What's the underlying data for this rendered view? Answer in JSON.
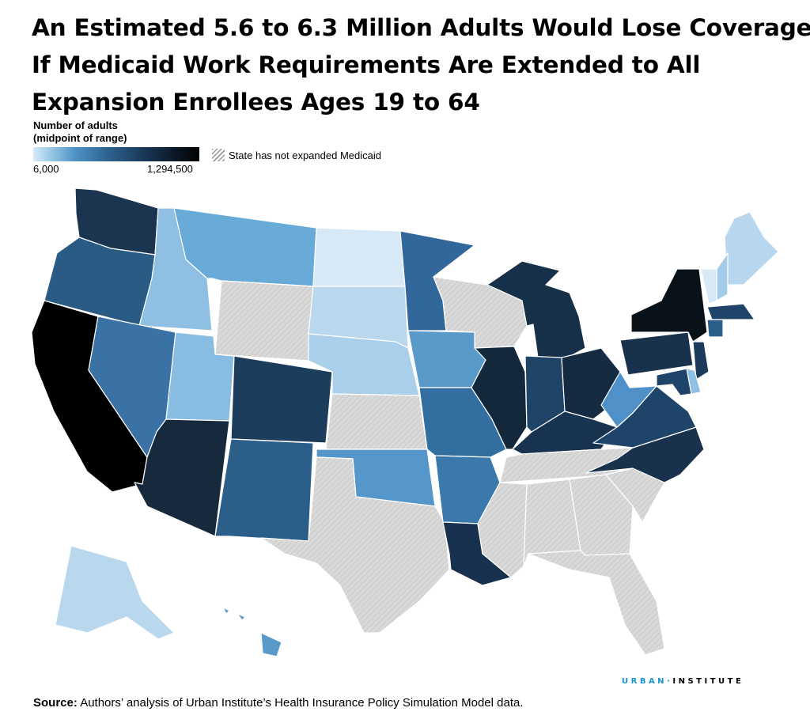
{
  "title_lines": [
    "An Estimated 5.6 to 6.3 Million Adults Would Lose Coverage",
    "If Medicaid Work Requirements Are Extended to All",
    "Expansion Enrollees Ages 19 to 64"
  ],
  "legend": {
    "title_line1": "Number of adults",
    "title_line2": "(midpoint of range)",
    "min_label": "6,000",
    "max_label": "1,294,500",
    "not_expanded_label": "State has not expanded Medicaid"
  },
  "colors": {
    "scale": [
      "#d7e9f7",
      "#9ccae7",
      "#4e93c6",
      "#2d628f",
      "#16324f",
      "#000000"
    ],
    "not_expanded": "#d9d9d9"
  },
  "states": [
    {
      "id": "WA",
      "color": "#1b3550"
    },
    {
      "id": "OR",
      "color": "#2a5b85"
    },
    {
      "id": "CA",
      "color": "#000000"
    },
    {
      "id": "ID",
      "color": "#8fc0e3"
    },
    {
      "id": "NV",
      "color": "#3a72a6"
    },
    {
      "id": "MT",
      "color": "#68abd9"
    },
    {
      "id": "WY",
      "color": "hatch"
    },
    {
      "id": "UT",
      "color": "#88bce1"
    },
    {
      "id": "AZ",
      "color": "#16293d"
    },
    {
      "id": "CO",
      "color": "#1d3d5c"
    },
    {
      "id": "NM",
      "color": "#2c5e8a"
    },
    {
      "id": "ND",
      "color": "#d7e9f7"
    },
    {
      "id": "SD",
      "color": "#b9d8ee"
    },
    {
      "id": "NE",
      "color": "#a9cfeb"
    },
    {
      "id": "KS",
      "color": "hatch"
    },
    {
      "id": "OK",
      "color": "#5597ca"
    },
    {
      "id": "TX",
      "color": "hatch"
    },
    {
      "id": "MN",
      "color": "#31679a"
    },
    {
      "id": "IA",
      "color": "#5a9acb"
    },
    {
      "id": "MO",
      "color": "#336ea0"
    },
    {
      "id": "AR",
      "color": "#3b78ab"
    },
    {
      "id": "LA",
      "color": "#17314f"
    },
    {
      "id": "WI",
      "color": "hatch"
    },
    {
      "id": "IL",
      "color": "#14283b"
    },
    {
      "id": "MI",
      "color": "#17304a"
    },
    {
      "id": "IN",
      "color": "#1f4468"
    },
    {
      "id": "OH",
      "color": "#152b42"
    },
    {
      "id": "KY",
      "color": "#18334f"
    },
    {
      "id": "TN",
      "color": "hatch"
    },
    {
      "id": "MS",
      "color": "hatch"
    },
    {
      "id": "AL",
      "color": "hatch"
    },
    {
      "id": "GA",
      "color": "hatch"
    },
    {
      "id": "FL",
      "color": "hatch"
    },
    {
      "id": "SC",
      "color": "hatch"
    },
    {
      "id": "NC",
      "color": "#18314d"
    },
    {
      "id": "VA",
      "color": "#1f446a"
    },
    {
      "id": "WV",
      "color": "#4e90c7"
    },
    {
      "id": "PA",
      "color": "#18314c"
    },
    {
      "id": "NY",
      "color": "#0a1219"
    },
    {
      "id": "ME",
      "color": "#b8d7ee"
    },
    {
      "id": "NH",
      "color": "#a3cbea"
    },
    {
      "id": "VT",
      "color": "#d7e9f7"
    },
    {
      "id": "MA",
      "color": "#1f446a"
    },
    {
      "id": "CT",
      "color": "#2c5e8a"
    },
    {
      "id": "NJ",
      "color": "#1b3a5c"
    },
    {
      "id": "DE",
      "color": "#8fc0e3"
    },
    {
      "id": "MD",
      "color": "#1f446a"
    },
    {
      "id": "AK",
      "color": "#b9d8ee"
    },
    {
      "id": "HI",
      "color": "#5a9acb"
    }
  ],
  "brand": {
    "part1": "URBAN",
    "separator": "·",
    "part2": "INSTITUTE"
  },
  "source": {
    "label": "Source:",
    "text": "Authors’ analysis of Urban Institute’s Health Insurance Policy Simulation Model data."
  }
}
